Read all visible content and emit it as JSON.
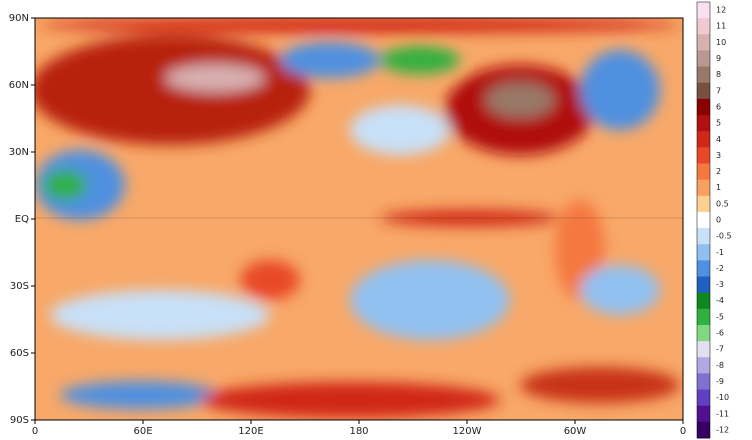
{
  "map": {
    "lat_labels": [
      "90N",
      "60N",
      "30N",
      "EQ",
      "30S",
      "60S",
      "90S"
    ],
    "lon_labels": [
      "0",
      "60E",
      "120E",
      "180",
      "120W",
      "60W",
      "0"
    ]
  },
  "colorbar": {
    "items": [
      {
        "label": "12",
        "color": "#fde0ef"
      },
      {
        "label": "11",
        "color": "#f0c8d0"
      },
      {
        "label": "10",
        "color": "#d8b0b0"
      },
      {
        "label": "9",
        "color": "#b89890"
      },
      {
        "label": "8",
        "color": "#987868"
      },
      {
        "label": "7",
        "color": "#785040"
      },
      {
        "label": "6",
        "color": "#8b0000"
      },
      {
        "label": "5",
        "color": "#b01010"
      },
      {
        "label": "4",
        "color": "#d02818"
      },
      {
        "label": "3",
        "color": "#e84828"
      },
      {
        "label": "2",
        "color": "#f47840"
      },
      {
        "label": "1",
        "color": "#f8a060"
      },
      {
        "label": "0.5",
        "color": "#fcd090"
      },
      {
        "label": "0",
        "color": "#ffffff"
      },
      {
        "label": "-0.5",
        "color": "#c8e0f8"
      },
      {
        "label": "-1",
        "color": "#90c0f0"
      },
      {
        "label": "-2",
        "color": "#5090e0"
      },
      {
        "label": "-3",
        "color": "#2060c0"
      },
      {
        "label": "-4",
        "color": "#108820"
      },
      {
        "label": "-5",
        "color": "#30b040"
      },
      {
        "label": "-6",
        "color": "#80d880"
      },
      {
        "label": "-7",
        "color": "#e0e0f0"
      },
      {
        "label": "-8",
        "color": "#b0a8e0"
      },
      {
        "label": "-9",
        "color": "#8070d0"
      },
      {
        "label": "-10",
        "color": "#6040c0"
      },
      {
        "label": "-11",
        "color": "#501090"
      },
      {
        "label": "-12",
        "color": "#380060"
      }
    ]
  }
}
